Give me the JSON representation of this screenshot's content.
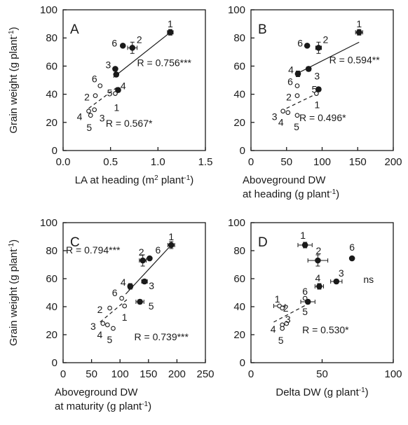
{
  "figure": {
    "shared_ylabel": "Grain weight (g plant⁻¹)"
  },
  "chart_data": [
    {
      "type": "scatter",
      "panel": "A",
      "xlabel": "LA at heading (m² plant⁻¹)",
      "ylabel": "Grain weight (g plant⁻¹)",
      "xlim": [
        0,
        1.5
      ],
      "ylim": [
        0,
        100
      ],
      "xticks": [
        "0.0",
        "0.5",
        "1.0",
        "1.5"
      ],
      "yticks": [
        "0",
        "20",
        "40",
        "60",
        "80",
        "100"
      ],
      "series": [
        {
          "marker": "filled",
          "points": [
            {
              "label": "1",
              "x": 1.13,
              "y": 84,
              "xerr": 0.03,
              "yerr": 2
            },
            {
              "label": "2",
              "x": 0.73,
              "y": 73,
              "xerr": 0.05,
              "yerr": 4
            },
            {
              "label": "3",
              "x": 0.55,
              "y": 58,
              "xerr": 0,
              "yerr": 1
            },
            {
              "label": "4",
              "x": 0.56,
              "y": 54,
              "xerr": 0.02,
              "yerr": 1.5
            },
            {
              "label": "5",
              "x": 0.58,
              "y": 43,
              "xerr": 0,
              "yerr": 1.5
            },
            {
              "label": "6",
              "x": 0.63,
              "y": 74.5,
              "xerr": 0,
              "yerr": 0
            }
          ],
          "r": "R = 0.756***",
          "fit": [
            [
              0.53,
              52
            ],
            [
              1.13,
              84
            ]
          ]
        },
        {
          "marker": "open",
          "points": [
            {
              "label": "1",
              "x": 0.55,
              "y": 40.5
            },
            {
              "label": "2",
              "x": 0.34,
              "y": 39
            },
            {
              "label": "3",
              "x": 0.33,
              "y": 29
            },
            {
              "label": "4",
              "x": 0.27,
              "y": 28
            },
            {
              "label": "5",
              "x": 0.29,
              "y": 25
            },
            {
              "label": "6",
              "x": 0.39,
              "y": 46
            }
          ],
          "r": "R = 0.567*",
          "fit": [
            [
              0.27,
              30
            ],
            [
              0.57,
              45
            ]
          ]
        }
      ]
    },
    {
      "type": "scatter",
      "panel": "B",
      "xlabel": "Aboveground DW at heading (g plant⁻¹)",
      "xlim": [
        0,
        200
      ],
      "ylim": [
        0,
        100
      ],
      "xticks": [
        "0",
        "50",
        "100",
        "150",
        "200"
      ],
      "yticks": [
        "0",
        "20",
        "40",
        "60",
        "80",
        "100"
      ],
      "series": [
        {
          "marker": "filled",
          "points": [
            {
              "label": "1",
              "x": 152,
              "y": 84,
              "xerr": 5,
              "yerr": 2
            },
            {
              "label": "2",
              "x": 95,
              "y": 73,
              "xerr": 4,
              "yerr": 4
            },
            {
              "label": "3",
              "x": 81,
              "y": 58,
              "xerr": 3,
              "yerr": 1.5
            },
            {
              "label": "4",
              "x": 66,
              "y": 54.5,
              "xerr": 3,
              "yerr": 2
            },
            {
              "label": "5",
              "x": 95,
              "y": 43.5,
              "xerr": 0,
              "yerr": 1.5
            },
            {
              "label": "6",
              "x": 79,
              "y": 74.5,
              "xerr": 0,
              "yerr": 0
            }
          ],
          "r": "R = 0.594**",
          "fit": [
            [
              62,
              54
            ],
            [
              152,
              77
            ]
          ]
        },
        {
          "marker": "open",
          "points": [
            {
              "label": "1",
              "x": 92,
              "y": 40.5
            },
            {
              "label": "2",
              "x": 65,
              "y": 39
            },
            {
              "label": "3",
              "x": 45,
              "y": 28
            },
            {
              "label": "4",
              "x": 52,
              "y": 27
            },
            {
              "label": "5",
              "x": 65,
              "y": 25
            },
            {
              "label": "6",
              "x": 65,
              "y": 46
            }
          ],
          "r": "R = 0.496*",
          "fit": [
            [
              50,
              30
            ],
            [
              95,
              41
            ]
          ]
        }
      ]
    },
    {
      "type": "scatter",
      "panel": "C",
      "xlabel": "Aboveground DW at maturity (g plant⁻¹)",
      "ylabel": "Grain weight (g plant⁻¹)",
      "xlim": [
        0,
        250
      ],
      "ylim": [
        0,
        100
      ],
      "xticks": [
        "0",
        "50",
        "100",
        "150",
        "200",
        "250"
      ],
      "yticks": [
        "0",
        "20",
        "40",
        "60",
        "80",
        "100"
      ],
      "series": [
        {
          "marker": "filled",
          "points": [
            {
              "label": "1",
              "x": 190,
              "y": 84,
              "xerr": 6,
              "yerr": 2.5
            },
            {
              "label": "2",
              "x": 140,
              "y": 73,
              "xerr": 6,
              "yerr": 4
            },
            {
              "label": "3",
              "x": 143,
              "y": 58,
              "xerr": 5,
              "yerr": 1.5
            },
            {
              "label": "4",
              "x": 118,
              "y": 54.5,
              "xerr": 4,
              "yerr": 2
            },
            {
              "label": "5",
              "x": 135,
              "y": 43.5,
              "xerr": 7,
              "yerr": 1.5
            },
            {
              "label": "6",
              "x": 152,
              "y": 74.5,
              "xerr": 0,
              "yerr": 0
            }
          ],
          "r": "R = 0.794***",
          "fit": [
            [
              110,
              49
            ],
            [
              190,
              84
            ]
          ]
        },
        {
          "marker": "open",
          "points": [
            {
              "label": "1",
              "x": 108,
              "y": 40.5
            },
            {
              "label": "2",
              "x": 82,
              "y": 39
            },
            {
              "label": "3",
              "x": 70,
              "y": 28
            },
            {
              "label": "4",
              "x": 78,
              "y": 27
            },
            {
              "label": "5",
              "x": 88,
              "y": 24.5
            },
            {
              "label": "6",
              "x": 103,
              "y": 46
            }
          ],
          "r": "R = 0.739***",
          "fit": [
            [
              65,
              29
            ],
            [
              112,
              45
            ]
          ]
        }
      ]
    },
    {
      "type": "scatter",
      "panel": "D",
      "xlabel": "Delta DW (g plant⁻¹)",
      "xlim": [
        0,
        100
      ],
      "ylim": [
        0,
        100
      ],
      "xticks": [
        "0",
        "50",
        "100"
      ],
      "yticks": [
        "0",
        "20",
        "40",
        "60",
        "80",
        "100"
      ],
      "series": [
        {
          "marker": "filled",
          "points": [
            {
              "label": "1",
              "x": 38,
              "y": 84,
              "xerr": 5,
              "yerr": 2
            },
            {
              "label": "2",
              "x": 47,
              "y": 73,
              "xerr": 7,
              "yerr": 4
            },
            {
              "label": "3",
              "x": 60,
              "y": 58,
              "xerr": 4,
              "yerr": 1.5
            },
            {
              "label": "4",
              "x": 48,
              "y": 54.5,
              "xerr": 3,
              "yerr": 2
            },
            {
              "label": "5",
              "x": 40,
              "y": 43.5,
              "xerr": 5,
              "yerr": 1.5
            },
            {
              "label": "6",
              "x": 71,
              "y": 74.5,
              "xerr": 0,
              "yerr": 0
            }
          ],
          "r": "ns",
          "fit": []
        },
        {
          "marker": "open",
          "points": [
            {
              "label": "1",
              "x": 20,
              "y": 40.5,
              "xerr": 4,
              "yerr": 0
            },
            {
              "label": "2",
              "x": 22,
              "y": 39,
              "xerr": 0,
              "yerr": 0
            },
            {
              "label": "3",
              "x": 25,
              "y": 28,
              "xerr": 0,
              "yerr": 0
            },
            {
              "label": "4",
              "x": 22,
              "y": 27,
              "xerr": 0,
              "yerr": 0
            },
            {
              "label": "5",
              "x": 22,
              "y": 24.5,
              "xerr": 0,
              "yerr": 0
            },
            {
              "label": "6",
              "x": 38,
              "y": 46,
              "xerr": 0,
              "yerr": 0
            }
          ],
          "r": "R = 0.530*",
          "fit": [
            [
              16,
              29
            ],
            [
              42,
              43
            ]
          ]
        }
      ]
    }
  ]
}
